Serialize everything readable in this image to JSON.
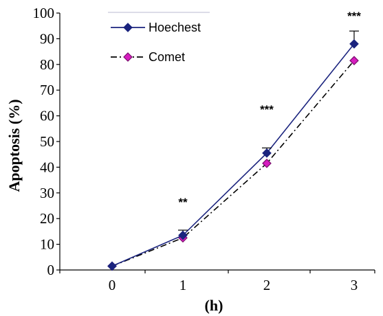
{
  "chart_data": {
    "type": "line",
    "title": "",
    "xlabel": "(h)",
    "ylabel": "Apoptosis (%)",
    "categories": [
      "0",
      "1",
      "2",
      "3"
    ],
    "x": [
      0,
      1,
      2,
      3
    ],
    "ylim": [
      0,
      100
    ],
    "yticks": [
      "0",
      "10",
      "20",
      "30",
      "40",
      "50",
      "60",
      "70",
      "80",
      "90",
      "100"
    ],
    "grid": false,
    "legend_position": "top-left",
    "series": [
      {
        "name": "Hoechest",
        "values": [
          1.5,
          13.5,
          45.5,
          88
        ],
        "error": [
          0,
          2,
          2,
          5
        ],
        "color": "#1a237e",
        "marker_color": "#1a237e",
        "line_style": "solid"
      },
      {
        "name": "Comet",
        "values": [
          1.5,
          12.5,
          41.5,
          81.5
        ],
        "error": [
          0,
          0,
          0,
          0
        ],
        "color": "#000000",
        "marker_color": "#d61dbf",
        "line_style": "dashdot"
      }
    ],
    "annotations": [
      {
        "x": 1,
        "text": "**"
      },
      {
        "x": 2,
        "text": "***"
      },
      {
        "x": 3,
        "text": "***"
      }
    ]
  }
}
